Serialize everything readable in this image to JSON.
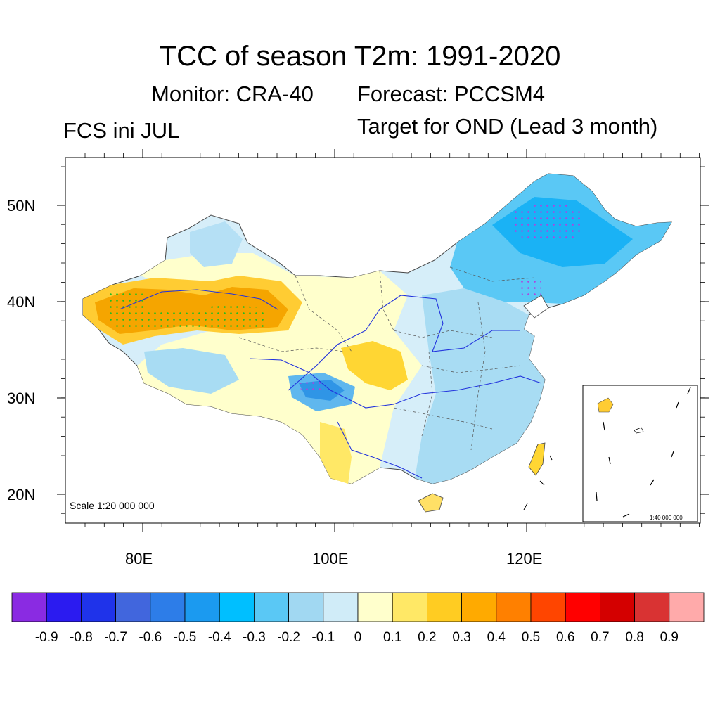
{
  "header": {
    "title": "TCC of season T2m: 1991-2020",
    "monitor": "Monitor: CRA-40",
    "forecast": "Forecast: PCCSM4",
    "init": "FCS ini JUL",
    "target": "Target for OND (Lead 3 month)"
  },
  "map": {
    "lat_labels": [
      "50N",
      "40N",
      "30N",
      "20N"
    ],
    "lon_labels": [
      "80E",
      "100E",
      "120E"
    ],
    "scale_main": "Scale 1:20 000 000",
    "scale_inset": "1:40 000 000"
  },
  "colorbar": {
    "colors": [
      "#8a2be2",
      "#2b1bf0",
      "#1f33ea",
      "#4166dd",
      "#2d7de8",
      "#1b9af0",
      "#00bfff",
      "#5ac8f5",
      "#a1d8f2",
      "#d0ecf8",
      "#ffffcc",
      "#ffe866",
      "#ffcc22",
      "#ffaa00",
      "#ff8000",
      "#ff4500",
      "#ff0000",
      "#d40000",
      "#d93333",
      "#ffaaaa"
    ],
    "labels": [
      "-0.9",
      "-0.8",
      "-0.7",
      "-0.6",
      "-0.5",
      "-0.4",
      "-0.3",
      "-0.2",
      "-0.1",
      "0",
      "0.1",
      "0.2",
      "0.3",
      "0.4",
      "0.5",
      "0.6",
      "0.7",
      "0.8",
      "0.9"
    ]
  }
}
